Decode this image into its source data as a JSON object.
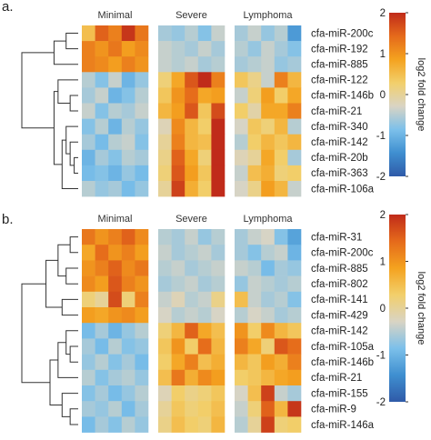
{
  "colorscale": {
    "stops": [
      "#2f5aa8",
      "#3f8fd0",
      "#7cc0ea",
      "#d9d4c4",
      "#f2cf6b",
      "#f4a21f",
      "#e56a1b",
      "#c02b1a"
    ],
    "range": [
      -2,
      2
    ],
    "ticks": [
      "-2",
      "-1",
      "0",
      "1",
      "2"
    ],
    "label": "log2 fold change"
  },
  "chart_data": [
    {
      "type": "heatmap",
      "panel_label": "a.",
      "groups": [
        {
          "name": "Minimal",
          "columns": 5
        },
        {
          "name": "Severe",
          "columns": 5
        },
        {
          "name": "Lymphoma",
          "columns": 5
        }
      ],
      "rows": [
        "cfa-miR-200c",
        "cfa-miR-192",
        "cfa-miR-885",
        "cfa-miR-122",
        "cfa-miR-146b",
        "cfa-miR-21",
        "cfa-miR-340",
        "cfa-miR-142",
        "cfa-miR-20b",
        "cfa-miR-363",
        "cfa-miR-106a"
      ],
      "values": [
        [
          0.5,
          1.5,
          1.2,
          1.9,
          1.3,
          -0.6,
          -0.7,
          -0.5,
          -0.8,
          -0.4,
          -0.6,
          -0.4,
          -0.7,
          -0.5,
          -1.3
        ],
        [
          1.2,
          1.0,
          1.3,
          0.9,
          1.1,
          -0.4,
          -0.5,
          -0.6,
          -0.4,
          -0.6,
          -0.5,
          -0.7,
          -0.4,
          -0.6,
          -0.8
        ],
        [
          1.2,
          1.1,
          0.9,
          1.2,
          1.0,
          -0.4,
          -0.5,
          -0.4,
          -0.6,
          -0.5,
          -0.6,
          -0.5,
          -0.4,
          -0.7,
          -0.6
        ],
        [
          -0.5,
          -0.8,
          -0.4,
          -1.0,
          -0.7,
          0.2,
          0.8,
          1.6,
          2.0,
          1.2,
          0.4,
          0.1,
          -0.4,
          1.2,
          0.6
        ],
        [
          -0.6,
          -0.4,
          -1.0,
          -0.8,
          -0.5,
          0.4,
          1.0,
          1.4,
          0.8,
          0.9,
          -0.4,
          0.2,
          0.9,
          0.3,
          0.8
        ],
        [
          -0.4,
          -0.8,
          -0.5,
          -0.6,
          -0.4,
          0.6,
          0.9,
          1.6,
          0.4,
          1.7,
          0.3,
          -0.1,
          0.8,
          0.8,
          1.2
        ],
        [
          -0.8,
          -0.5,
          -1.0,
          -0.5,
          -0.7,
          -0.2,
          1.1,
          0.6,
          0.3,
          2.0,
          -0.3,
          0.4,
          0.2,
          0.6,
          -0.5
        ],
        [
          -0.6,
          -0.9,
          -0.5,
          -0.4,
          -0.8,
          0.0,
          1.2,
          0.6,
          0.5,
          2.0,
          -0.5,
          0.3,
          0.6,
          0.4,
          0.6
        ],
        [
          -1.0,
          -0.6,
          -0.8,
          -0.5,
          -0.6,
          0.1,
          1.5,
          0.8,
          0.2,
          2.0,
          -0.2,
          0.0,
          0.8,
          0.3,
          -0.6
        ],
        [
          -0.9,
          -0.8,
          -1.0,
          -0.7,
          -0.9,
          0.2,
          1.6,
          0.9,
          0.4,
          2.0,
          -0.4,
          0.5,
          0.7,
          0.2,
          0.3
        ],
        [
          -0.5,
          -0.7,
          -0.6,
          -0.9,
          -0.7,
          0.0,
          1.8,
          0.7,
          0.3,
          2.0,
          -0.3,
          0.1,
          0.9,
          0.6,
          -0.4
        ]
      ],
      "dendrogram_order": [
        0,
        1,
        2,
        3,
        4,
        5,
        6,
        7,
        8,
        9,
        10
      ]
    },
    {
      "type": "heatmap",
      "panel_label": "b.",
      "groups": [
        {
          "name": "Minimal",
          "columns": 5
        },
        {
          "name": "Severe",
          "columns": 5
        },
        {
          "name": "Lymphoma",
          "columns": 5
        }
      ],
      "rows": [
        "cfa-miR-31",
        "cfa-miR-200c",
        "cfa-miR-885",
        "cfa-miR-802",
        "cfa-miR-141",
        "cfa-miR-429",
        "cfa-miR-142",
        "cfa-miR-105a",
        "cfa-miR-146b",
        "cfa-miR-21",
        "cfa-miR-155",
        "cfa-miR-9",
        "cfa-miR-146a"
      ],
      "values": [
        [
          1.3,
          1.0,
          1.2,
          1.5,
          1.1,
          -0.5,
          -0.6,
          -0.4,
          -0.7,
          -0.5,
          -0.6,
          -0.4,
          -0.3,
          -0.8,
          -1.2
        ],
        [
          0.8,
          1.4,
          1.0,
          1.2,
          0.9,
          -0.4,
          -0.6,
          -0.5,
          -0.4,
          -0.6,
          -0.6,
          -0.8,
          -0.5,
          -0.4,
          -1.0
        ],
        [
          1.0,
          1.2,
          1.5,
          1.1,
          1.3,
          -0.5,
          -0.4,
          -0.6,
          -0.5,
          -0.4,
          -0.4,
          -0.5,
          -0.9,
          -0.6,
          -0.7
        ],
        [
          1.1,
          0.9,
          1.6,
          1.2,
          1.0,
          -0.6,
          -0.5,
          -0.4,
          -0.6,
          -0.5,
          -0.7,
          -0.4,
          -0.5,
          -0.6,
          -0.5
        ],
        [
          0.2,
          0.0,
          1.7,
          0.2,
          1.2,
          -0.4,
          -0.2,
          -0.5,
          -0.4,
          0.1,
          0.5,
          -0.4,
          -0.6,
          -0.5,
          -0.8
        ],
        [
          0.9,
          0.8,
          1.0,
          1.1,
          0.9,
          -0.3,
          -0.5,
          -0.4,
          -0.5,
          -0.3,
          -0.5,
          -0.3,
          -0.4,
          -0.6,
          -0.5
        ],
        [
          -0.9,
          -0.6,
          -1.0,
          -0.7,
          -0.5,
          0.2,
          0.6,
          1.5,
          0.8,
          0.5,
          1.0,
          0.3,
          1.1,
          0.6,
          0.4
        ],
        [
          -0.6,
          -0.9,
          -0.5,
          -0.8,
          -0.7,
          0.4,
          1.0,
          0.3,
          1.4,
          0.6,
          1.2,
          0.8,
          0.2,
          1.6,
          1.4
        ],
        [
          -0.7,
          -0.5,
          -0.8,
          -0.6,
          -0.9,
          0.3,
          0.8,
          1.2,
          0.5,
          0.7,
          0.6,
          0.4,
          0.9,
          0.7,
          1.2
        ],
        [
          -0.5,
          -0.8,
          -0.6,
          -0.5,
          -0.7,
          0.5,
          1.3,
          0.7,
          1.1,
          0.9,
          0.3,
          0.4,
          0.6,
          0.8,
          0.9
        ],
        [
          -0.8,
          -0.6,
          -0.9,
          -0.7,
          -0.5,
          -0.2,
          0.3,
          0.1,
          0.2,
          0.4,
          -0.3,
          0.5,
          1.8,
          -0.4,
          -0.6
        ],
        [
          -0.6,
          -0.7,
          -0.5,
          -0.9,
          -0.6,
          0.0,
          0.4,
          0.2,
          0.3,
          0.5,
          -0.4,
          0.2,
          1.5,
          0.6,
          1.9
        ],
        [
          -0.9,
          -0.6,
          -0.8,
          -0.5,
          -0.7,
          0.1,
          0.5,
          0.3,
          0.2,
          0.6,
          -0.5,
          0.0,
          1.8,
          0.2,
          0.3
        ]
      ]
    }
  ]
}
